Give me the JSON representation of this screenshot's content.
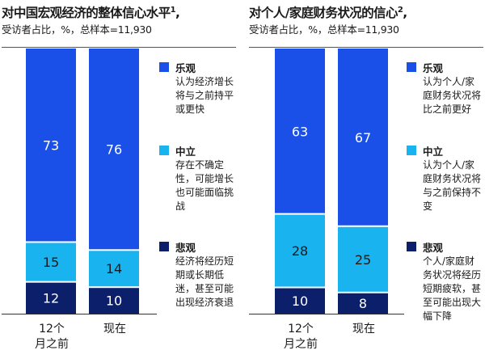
{
  "chart_data": [
    {
      "type": "bar",
      "stacked": true,
      "orientation": "vertical",
      "title": "对中国宏观经济的整体信心水平",
      "title_footnote": "1",
      "subtitle": "受访者占比，%，总样本=11,930",
      "categories": [
        "12个\n月之前",
        "现在"
      ],
      "series": [
        {
          "name": "悲观",
          "color": "#0b1f6b",
          "values": [
            12,
            10
          ],
          "description": "经济将经历短期或长期低迷，甚至可能出现经济衰退"
        },
        {
          "name": "中立",
          "color": "#19b4ef",
          "values": [
            15,
            14
          ],
          "description": "存在不确定性，可能增长也可能面临挑战"
        },
        {
          "name": "乐观",
          "color": "#1b50e8",
          "values": [
            73,
            76
          ],
          "description": "认为经济增长将与之前持平或更快"
        }
      ],
      "ylim": [
        0,
        100
      ],
      "legend_position": "right",
      "grid": false
    },
    {
      "type": "bar",
      "stacked": true,
      "orientation": "vertical",
      "title": "对个人/家庭财务状况的信心",
      "title_footnote": "2",
      "subtitle": "受访者占比，%，总样本=11,930",
      "categories": [
        "12个\n月之前",
        "现在"
      ],
      "series": [
        {
          "name": "悲观",
          "color": "#0b1f6b",
          "values": [
            10,
            8
          ],
          "description": "个人/家庭财务状况将经历短期疲软，甚至可能出现大幅下降"
        },
        {
          "name": "中立",
          "color": "#19b4ef",
          "values": [
            28,
            25
          ],
          "description": "认为个人/家庭财务状况将与之前保持不变"
        },
        {
          "name": "乐观",
          "color": "#1b50e8",
          "values": [
            63,
            67
          ],
          "description": "认为个人/家庭财务状况将比之前更好"
        }
      ],
      "ylim": [
        0,
        100
      ],
      "legend_position": "right",
      "grid": false
    }
  ]
}
